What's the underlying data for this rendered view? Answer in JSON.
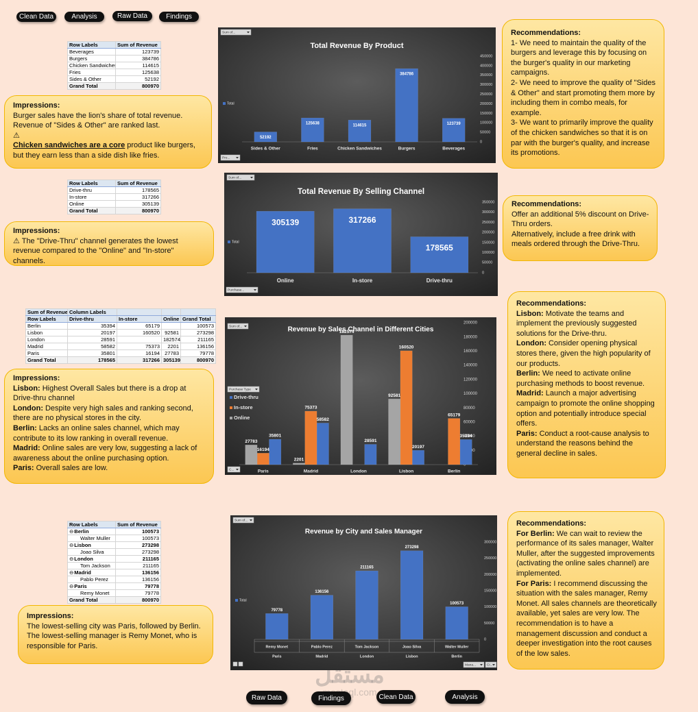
{
  "nav_top": [
    "Clean Data",
    "Analysis",
    "Raw Data",
    "Findings"
  ],
  "nav_bottom": [
    "Raw Data",
    "Findings",
    "Clean Data",
    "Analysis"
  ],
  "tables": [
    {
      "header": [
        [
          "Row Labels",
          "Sum of Revenue"
        ]
      ],
      "rows": [
        [
          "Beverages",
          123739
        ],
        [
          "Burgers",
          384786
        ],
        [
          "Chicken Sandwiches",
          114615
        ],
        [
          "Fries",
          125638
        ],
        [
          "Sides & Other",
          52192
        ]
      ],
      "total": [
        "Grand Total",
        800970
      ]
    },
    {
      "header": [
        [
          "Row Labels",
          "Sum of Revenue"
        ]
      ],
      "rows": [
        [
          "Drive-thru",
          178565
        ],
        [
          "In-store",
          317266
        ],
        [
          "Online",
          305139
        ]
      ],
      "total": [
        "Grand Total",
        800970
      ]
    },
    {
      "header": [
        [
          "Sum of Revenue",
          "Column Labels"
        ],
        [
          "Row Labels",
          "Drive-thru",
          "In-store",
          "Online",
          "Grand Total"
        ]
      ],
      "rows": [
        [
          "Berlin",
          35394,
          65179,
          null,
          100573
        ],
        [
          "Lisbon",
          20197,
          160520,
          92581,
          273298
        ],
        [
          "London",
          28591,
          null,
          182574,
          211165
        ],
        [
          "Madrid",
          58582,
          75373,
          2201,
          136156
        ],
        [
          "Paris",
          35801,
          16194,
          27783,
          79778
        ]
      ],
      "total": [
        "Grand Total",
        178565,
        317266,
        305139,
        800970
      ]
    },
    {
      "header": [
        [
          "Row Labels",
          "Sum of Revenue"
        ]
      ],
      "rows": [
        [
          "Berlin",
          100573
        ],
        [
          "Walter Muller",
          100573
        ],
        [
          "Lisbon",
          273298
        ],
        [
          "Joao Silva",
          273298
        ],
        [
          "London",
          211165
        ],
        [
          "Tom Jackson",
          211165
        ],
        [
          "Madrid",
          136156
        ],
        [
          "Pablo Perez",
          136156
        ],
        [
          "Paris",
          79778
        ],
        [
          "Remy Monet",
          79778
        ]
      ],
      "row_levels": [
        0,
        1,
        0,
        1,
        0,
        1,
        0,
        1,
        0,
        1
      ],
      "total": [
        "Grand Total",
        800970
      ]
    }
  ],
  "chart_data": [
    {
      "type": "bar",
      "title": "Total Revenue By Product",
      "categories": [
        "Sides & Other",
        "Fries",
        "Chicken Sandwiches",
        "Burgers",
        "Beverages"
      ],
      "series": [
        {
          "name": "Total",
          "color": "#4472c4",
          "values": [
            52192,
            125638,
            114615,
            384786,
            123739
          ]
        }
      ],
      "ylim": [
        0,
        450000
      ],
      "yticks": [
        0,
        50000,
        100000,
        150000,
        200000,
        250000,
        300000,
        350000,
        400000,
        450000
      ],
      "field_buttons": [
        "Sum of...",
        "Pro..."
      ]
    },
    {
      "type": "bar",
      "title": "Total Revenue By Selling Channel",
      "categories": [
        "Online",
        "In-store",
        "Drive-thru"
      ],
      "series": [
        {
          "name": "Total",
          "color": "#4472c4",
          "values": [
            305139,
            317266,
            178565
          ]
        }
      ],
      "ylim": [
        0,
        350000
      ],
      "yticks": [
        0,
        50000,
        100000,
        150000,
        200000,
        250000,
        300000,
        350000
      ],
      "field_buttons": [
        "Sum of...",
        "Purchase..."
      ]
    },
    {
      "type": "bar",
      "title": "Revenue by Sales Channel in Different Cities",
      "categories": [
        "Paris",
        "Madrid",
        "London",
        "Lisbon",
        "Berlin"
      ],
      "series": [
        {
          "name": "Drive-thru",
          "color": "#4472c4",
          "values": [
            35801,
            58582,
            28591,
            20197,
            35394
          ]
        },
        {
          "name": "In-store",
          "color": "#ed7d31",
          "values": [
            16194,
            75373,
            null,
            160520,
            65179
          ]
        },
        {
          "name": "Online",
          "color": "#a5a5a5",
          "values": [
            27783,
            2201,
            182574,
            92581,
            null
          ]
        }
      ],
      "ylim": [
        0,
        200000
      ],
      "yticks": [
        0,
        20000,
        40000,
        60000,
        80000,
        100000,
        120000,
        140000,
        160000,
        180000,
        200000
      ],
      "field_buttons": [
        "Sum of...",
        "Purchase Type",
        "C..."
      ]
    },
    {
      "type": "bar",
      "title": "Revenue by City and Sales Manager",
      "categories": [
        "Remy Monet",
        "Pablo Perez",
        "Tom Jackson",
        "Joao Silva",
        "Walter Muller"
      ],
      "outer_categories": [
        "Paris",
        "Madrid",
        "London",
        "Lisbon",
        "Berlin"
      ],
      "series": [
        {
          "name": "Total",
          "color": "#4472c4",
          "values": [
            79778,
            136156,
            211165,
            273298,
            100573
          ]
        }
      ],
      "ylim": [
        0,
        300000
      ],
      "yticks": [
        0,
        50000,
        100000,
        150000,
        200000,
        250000,
        300000
      ],
      "field_buttons": [
        "Sum of...",
        "Mana...",
        "Ci..."
      ]
    }
  ],
  "impressions": [
    {
      "heading": "Impressions:",
      "paragraphs": [
        "Burger sales have the lion's share of total revenue. Revenue of \"Sides & Other\" are ranked last.",
        "⚠",
        {
          "underline": "Chicken sandwiches are a core",
          "text": "product like burgers, but they earn less than a side dish like fries."
        }
      ]
    },
    {
      "heading": "Impressions:",
      "paragraphs": [
        "⚠ The \"Drive-Thru\" channel generates the lowest revenue compared to the \"Online\" and \"In-store\" channels."
      ]
    },
    {
      "heading": "Impressions:",
      "paragraphs": [
        {
          "lead": "Lisbon:",
          "text": "Highest Overall Sales but there is a drop at Drive-thru channel"
        },
        {
          "lead": "London:",
          "text": "Despite very high sales and ranking second, there are no physical stores in the city."
        },
        {
          "lead": "Berlin:",
          "text": "Lacks an online sales channel, which may contribute to its low ranking in overall revenue."
        },
        {
          "lead": "Madrid:",
          "text": "Online sales are very low, suggesting a lack of awareness about the online purchasing option."
        },
        {
          "lead": "Paris:",
          "text": "Overall sales are low."
        }
      ]
    },
    {
      "heading": "Impressions:",
      "paragraphs": [
        "The lowest-selling city was Paris, followed by Berlin.",
        "The lowest-selling manager is Remy Monet, who is responsible for Paris."
      ]
    }
  ],
  "recommendations": [
    {
      "heading": "Recommendations:",
      "paragraphs": [
        "1- We need to maintain the quality of the burgers and leverage this by focusing on the burger's quality in our marketing campaigns.",
        "2- We need to improve the quality of \"Sides & Other\" and start promoting them more by including them in combo meals, for example.",
        "3- We want to primarily improve the quality of the chicken sandwiches so that it is on par with the burger's quality, and increase its promotions."
      ]
    },
    {
      "heading": "Recommendations:",
      "paragraphs": [
        "Offer an additional 5% discount on Drive-Thru orders.",
        "Alternatively, include a free drink with meals ordered through the Drive-Thru."
      ]
    },
    {
      "heading": "Recommendations:",
      "paragraphs": [
        {
          "lead": "Lisbon:",
          "text": "Motivate the teams and implement the previously suggested solutions for the Drive-thru."
        },
        {
          "lead": "London:",
          "text": "Consider opening physical stores there, given the high popularity of our products."
        },
        {
          "lead": "Berlin:",
          "text": "We need to activate online purchasing methods to boost revenue."
        },
        {
          "lead": "Madrid:",
          "text": "Launch a major advertising campaign to promote the online shopping option and potentially introduce special offers."
        },
        {
          "lead": "Paris:",
          "text": "Conduct a root-cause analysis to understand the reasons behind the general decline in sales."
        }
      ]
    },
    {
      "heading": "Recommendations:",
      "paragraphs": [
        {
          "lead": "For Berlin:",
          "text": "We can wait to review the performance of its sales manager, Walter Muller, after the suggested improvements (activating the online sales channel) are implemented."
        },
        {
          "lead": "For Paris:",
          "text": "I recommend discussing the situation with the sales manager, Remy Monet. All sales channels are theoretically available, yet sales are very low. The recommendation is to have a management discussion and conduct a deeper investigation into the root causes of the low sales."
        }
      ]
    }
  ],
  "watermark": [
    "مستقل",
    "mostaql.com"
  ]
}
